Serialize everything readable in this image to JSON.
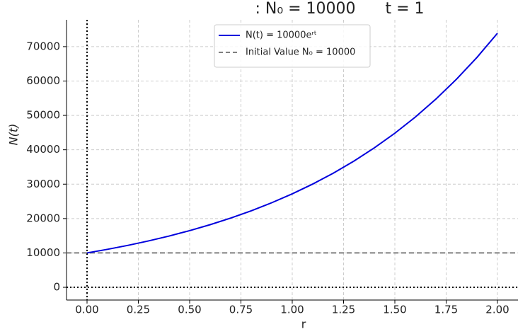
{
  "chart_data": {
    "type": "line",
    "title": "꞉ N₀ = 10000      t = 1",
    "xlabel": "r",
    "ylabel": "N(t)",
    "series": [
      {
        "name": "N(t) = 10000eʳᵗ",
        "color": "#0000dd",
        "x": [
          0,
          0.1,
          0.2,
          0.3,
          0.4,
          0.5,
          0.6,
          0.7,
          0.8,
          0.9,
          1.0,
          1.1,
          1.2,
          1.3,
          1.4,
          1.5,
          1.6,
          1.7,
          1.8,
          1.9,
          2.0
        ],
        "values": [
          10000,
          11052,
          12214,
          13499,
          14918,
          16487,
          18221,
          20138,
          22255,
          24596,
          27183,
          30042,
          33201,
          36693,
          40552,
          44817,
          49530,
          54739,
          60496,
          66859,
          73891
        ]
      }
    ],
    "reference_lines": [
      {
        "name": "Initial Value N₀ = 10000",
        "value": 10000,
        "color": "#808080",
        "style": "dashed"
      }
    ],
    "xlim": [
      -0.1,
      2.1
    ],
    "ylim": [
      -3700,
      77800
    ],
    "xticks": [
      {
        "value": 0,
        "label": "0.00"
      },
      {
        "value": 0.25,
        "label": "0.25"
      },
      {
        "value": 0.5,
        "label": "0.50"
      },
      {
        "value": 0.75,
        "label": "0.75"
      },
      {
        "value": 1,
        "label": "1.00"
      },
      {
        "value": 1.25,
        "label": "1.25"
      },
      {
        "value": 1.5,
        "label": "1.50"
      },
      {
        "value": 1.75,
        "label": "1.75"
      },
      {
        "value": 2,
        "label": "2.00"
      }
    ],
    "yticks": [
      0,
      10000,
      20000,
      30000,
      40000,
      50000,
      60000,
      70000
    ],
    "grid": true,
    "zero_lines": true,
    "legend": "upper center"
  }
}
